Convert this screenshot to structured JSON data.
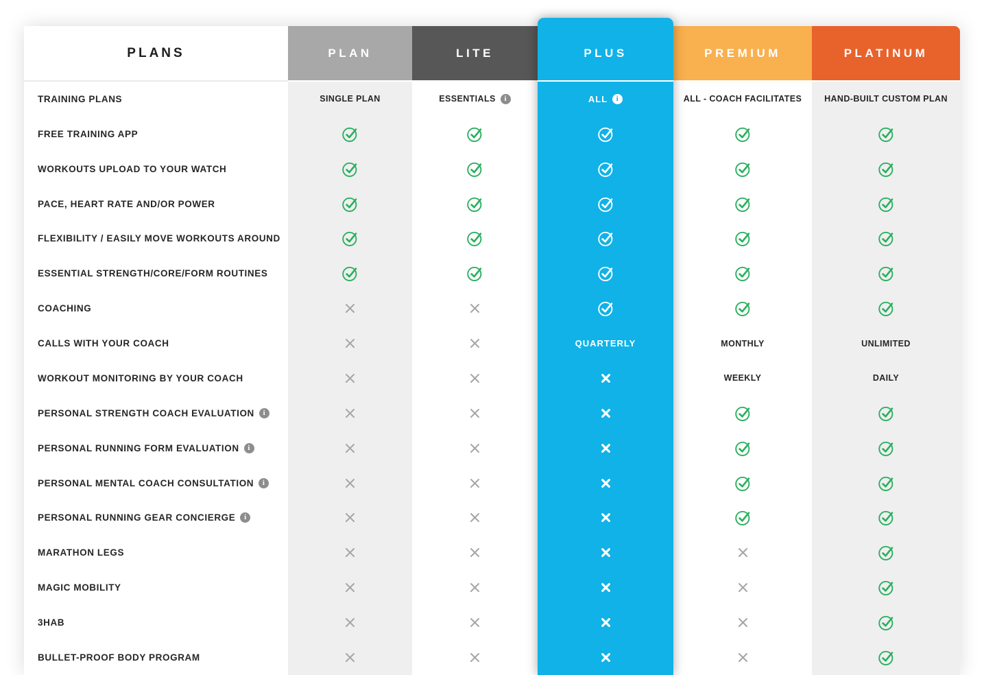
{
  "table": {
    "corner_header": "PLANS",
    "columns": [
      {
        "id": "plan",
        "label": "PLAN"
      },
      {
        "id": "lite",
        "label": "LITE"
      },
      {
        "id": "plus",
        "label": "PLUS",
        "highlighted": true
      },
      {
        "id": "premium",
        "label": "PREMIUM"
      },
      {
        "id": "platinum",
        "label": "PLATINUM"
      }
    ],
    "rows": [
      {
        "label": "TRAINING PLANS",
        "cells": [
          {
            "text": "SINGLE PLAN"
          },
          {
            "text": "ESSENTIALS",
            "info": true
          },
          {
            "text": "ALL",
            "info": true
          },
          {
            "text": "ALL - COACH FACILITATES"
          },
          {
            "text": "HAND-BUILT CUSTOM PLAN"
          }
        ]
      },
      {
        "label": "FREE TRAINING APP",
        "cells": [
          {
            "icon": "check"
          },
          {
            "icon": "check"
          },
          {
            "icon": "check"
          },
          {
            "icon": "check"
          },
          {
            "icon": "check"
          }
        ]
      },
      {
        "label": "WORKOUTS UPLOAD TO YOUR WATCH",
        "cells": [
          {
            "icon": "check"
          },
          {
            "icon": "check"
          },
          {
            "icon": "check"
          },
          {
            "icon": "check"
          },
          {
            "icon": "check"
          }
        ]
      },
      {
        "label": "PACE, HEART RATE AND/OR POWER",
        "cells": [
          {
            "icon": "check"
          },
          {
            "icon": "check"
          },
          {
            "icon": "check"
          },
          {
            "icon": "check"
          },
          {
            "icon": "check"
          }
        ]
      },
      {
        "label": "FLEXIBILITY / EASILY MOVE WORKOUTS AROUND",
        "cells": [
          {
            "icon": "check"
          },
          {
            "icon": "check"
          },
          {
            "icon": "check"
          },
          {
            "icon": "check"
          },
          {
            "icon": "check"
          }
        ]
      },
      {
        "label": "ESSENTIAL STRENGTH/CORE/FORM ROUTINES",
        "cells": [
          {
            "icon": "check"
          },
          {
            "icon": "check"
          },
          {
            "icon": "check"
          },
          {
            "icon": "check"
          },
          {
            "icon": "check"
          }
        ]
      },
      {
        "label": "COACHING",
        "cells": [
          {
            "icon": "cross"
          },
          {
            "icon": "cross"
          },
          {
            "icon": "check"
          },
          {
            "icon": "check"
          },
          {
            "icon": "check"
          }
        ]
      },
      {
        "label": "CALLS WITH YOUR COACH",
        "cells": [
          {
            "icon": "cross"
          },
          {
            "icon": "cross"
          },
          {
            "text": "QUARTERLY"
          },
          {
            "text": "MONTHLY"
          },
          {
            "text": "UNLIMITED"
          }
        ]
      },
      {
        "label": "WORKOUT MONITORING BY YOUR COACH",
        "cells": [
          {
            "icon": "cross"
          },
          {
            "icon": "cross"
          },
          {
            "icon": "cross"
          },
          {
            "text": "WEEKLY"
          },
          {
            "text": "DAILY"
          }
        ]
      },
      {
        "label": "PERSONAL STRENGTH COACH EVALUATION",
        "info": true,
        "cells": [
          {
            "icon": "cross"
          },
          {
            "icon": "cross"
          },
          {
            "icon": "cross"
          },
          {
            "icon": "check"
          },
          {
            "icon": "check"
          }
        ]
      },
      {
        "label": "PERSONAL RUNNING FORM EVALUATION",
        "info": true,
        "cells": [
          {
            "icon": "cross"
          },
          {
            "icon": "cross"
          },
          {
            "icon": "cross"
          },
          {
            "icon": "check"
          },
          {
            "icon": "check"
          }
        ]
      },
      {
        "label": "PERSONAL MENTAL COACH CONSULTATION",
        "info": true,
        "cells": [
          {
            "icon": "cross"
          },
          {
            "icon": "cross"
          },
          {
            "icon": "cross"
          },
          {
            "icon": "check"
          },
          {
            "icon": "check"
          }
        ]
      },
      {
        "label": "PERSONAL RUNNING GEAR CONCIERGE",
        "info": true,
        "cells": [
          {
            "icon": "cross"
          },
          {
            "icon": "cross"
          },
          {
            "icon": "cross"
          },
          {
            "icon": "check"
          },
          {
            "icon": "check"
          }
        ]
      },
      {
        "label": "MARATHON LEGS",
        "cells": [
          {
            "icon": "cross"
          },
          {
            "icon": "cross"
          },
          {
            "icon": "cross"
          },
          {
            "icon": "cross"
          },
          {
            "icon": "check"
          }
        ]
      },
      {
        "label": "MAGIC MOBILITY",
        "cells": [
          {
            "icon": "cross"
          },
          {
            "icon": "cross"
          },
          {
            "icon": "cross"
          },
          {
            "icon": "cross"
          },
          {
            "icon": "check"
          }
        ]
      },
      {
        "label": "3HAB",
        "cells": [
          {
            "icon": "cross"
          },
          {
            "icon": "cross"
          },
          {
            "icon": "cross"
          },
          {
            "icon": "cross"
          },
          {
            "icon": "check"
          }
        ]
      },
      {
        "label": "BULLET-PROOF BODY PROGRAM",
        "cells": [
          {
            "icon": "cross"
          },
          {
            "icon": "cross"
          },
          {
            "icon": "cross"
          },
          {
            "icon": "cross"
          },
          {
            "icon": "check"
          }
        ]
      }
    ]
  },
  "icons": {
    "info_glyph": "i",
    "check_name": "check-circle-icon",
    "cross_name": "cross-icon"
  },
  "colors": {
    "plus_blue": "#10b2e8",
    "premium_orange": "#f9b04e",
    "platinum_orange": "#e8622c",
    "plan_gray": "#a8a8a8",
    "lite_gray": "#575757",
    "column_bg_gray": "#efefef",
    "check_green": "#2bb05f",
    "cross_gray": "#a5a5a5",
    "info_gray": "#8d8d8d",
    "text_dark": "#262626"
  }
}
